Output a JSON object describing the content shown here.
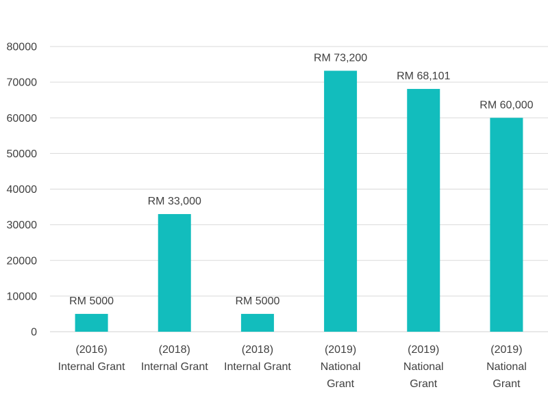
{
  "chart_data": {
    "type": "bar",
    "title": "",
    "xlabel": "",
    "ylabel": "",
    "ylim": [
      0,
      80000
    ],
    "yticks": [
      0,
      10000,
      20000,
      30000,
      40000,
      50000,
      60000,
      70000,
      80000
    ],
    "grid": true,
    "bar_color": "#12BDBD",
    "categories": [
      [
        "(2016)",
        "Internal Grant"
      ],
      [
        "(2018)",
        "Internal Grant"
      ],
      [
        "(2018)",
        "Internal Grant"
      ],
      [
        "(2019)",
        "National",
        "Grant"
      ],
      [
        "(2019)",
        "National",
        "Grant"
      ],
      [
        "(2019)",
        "National",
        "Grant"
      ]
    ],
    "values": [
      5000,
      33000,
      5000,
      73200,
      68101,
      60000
    ],
    "data_labels": [
      "RM 5000",
      "RM 33,000",
      "RM 5000",
      "RM 73,200",
      "RM 68,101",
      "RM 60,000"
    ]
  }
}
